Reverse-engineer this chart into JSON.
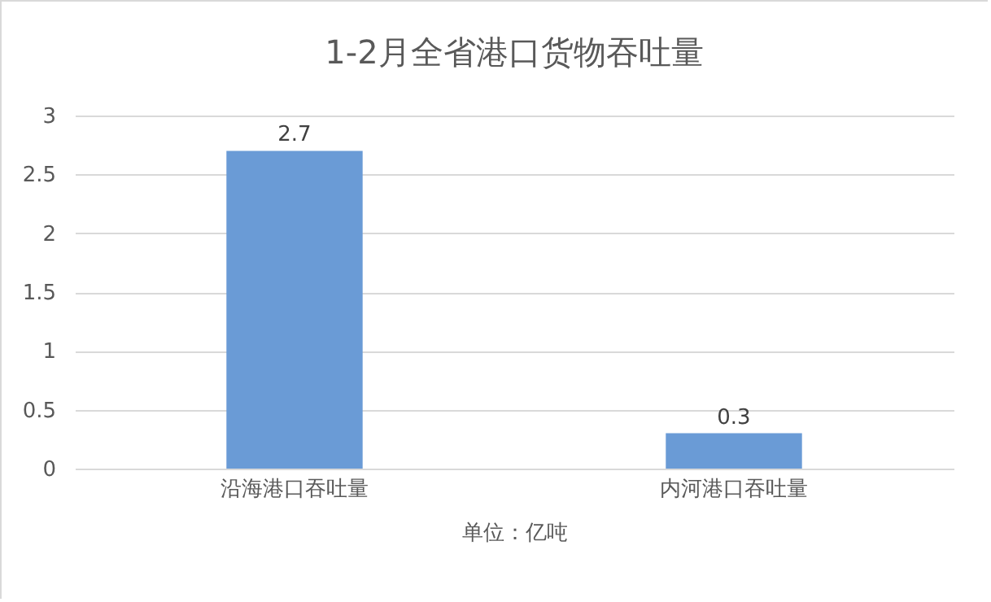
{
  "chart_data": {
    "type": "bar",
    "title": "1-2月全省港口货物吞吐量",
    "xlabel": "单位：亿吨",
    "categories": [
      "沿海港口吞吐量",
      "内河港口吞吐量"
    ],
    "values": [
      2.7,
      0.3
    ],
    "color": "#6a9bd6",
    "ylim": [
      0,
      3
    ],
    "yticks": [
      0,
      0.5,
      1,
      1.5,
      2,
      2.5,
      3
    ],
    "grid": "y",
    "data_labels": true
  }
}
